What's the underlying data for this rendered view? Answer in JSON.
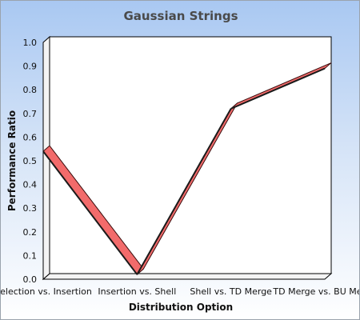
{
  "chart_data": {
    "type": "line",
    "title": "Gaussian Strings",
    "xlabel": "Distribution Option",
    "ylabel": "Performance Ratio",
    "categories": [
      "Selection vs. Insertion",
      "Insertion vs. Shell",
      "Shell vs. TD Merge",
      "TD Merge vs. BU Merge"
    ],
    "series": [
      {
        "values": [
          0.54,
          0.02,
          0.72,
          0.89
        ],
        "color": "#f26b6b"
      }
    ],
    "ylim": [
      0,
      1
    ],
    "yticks": [
      "0.0",
      "0.1",
      "0.2",
      "0.3",
      "0.4",
      "0.5",
      "0.6",
      "0.7",
      "0.8",
      "0.9",
      "1.0"
    ],
    "grid": false,
    "legend": "none",
    "style": "3d-ribbon"
  }
}
